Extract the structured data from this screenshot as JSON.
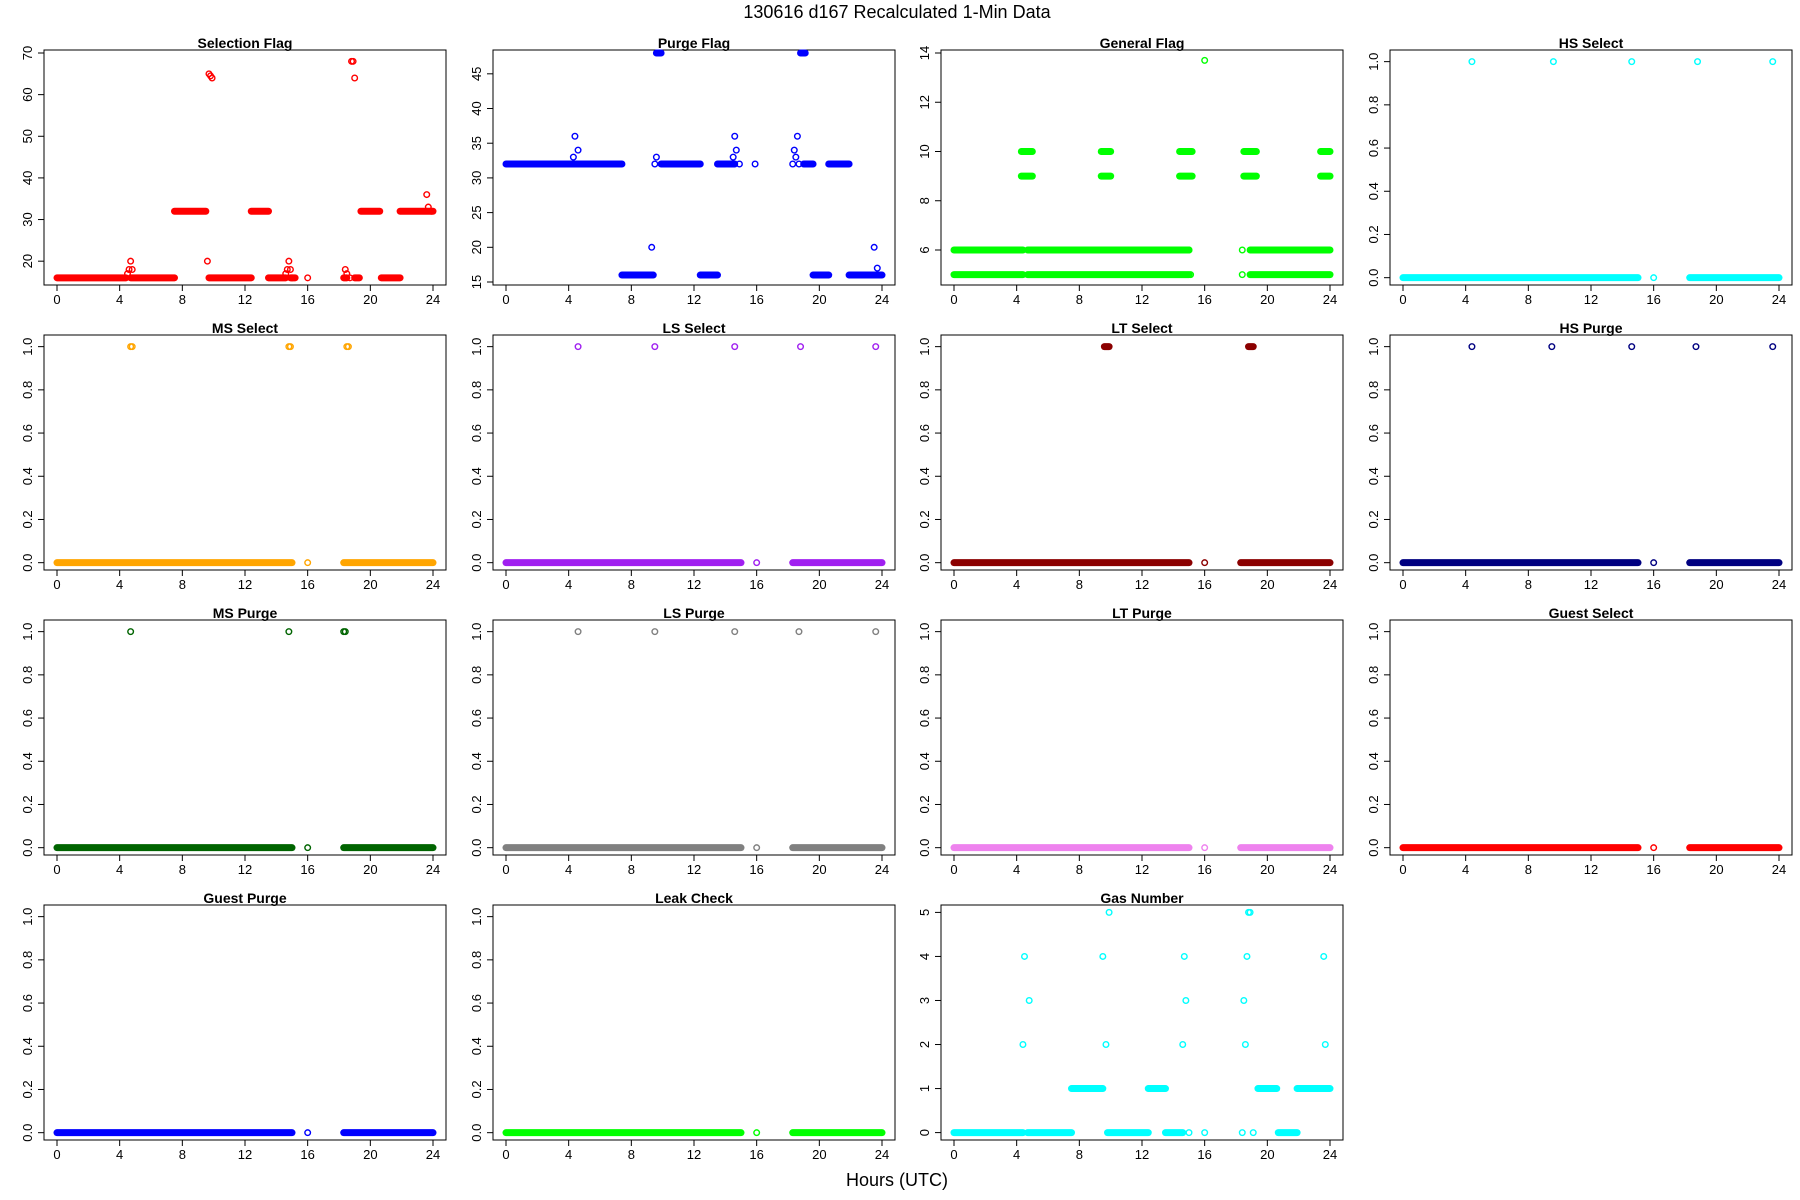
{
  "title": "130616   d167   Recalculated 1-Min Data",
  "xlabel": "Hours (UTC)",
  "chart_data": [
    {
      "type": "scatter",
      "title": "Selection Flag",
      "color": "#ff0000",
      "xlim": [
        0,
        24
      ],
      "ylim": [
        15,
        70
      ],
      "x_ticks": [
        0,
        4,
        8,
        12,
        16,
        20,
        24
      ],
      "y_ticks": [
        20,
        30,
        40,
        50,
        60,
        70
      ],
      "y_tick_labels": [
        "20",
        "30",
        "40",
        "50",
        "60",
        "70"
      ],
      "segments": [
        [
          0,
          4.4,
          16
        ],
        [
          4.7,
          7.5,
          16
        ],
        [
          7.5,
          9.5,
          32
        ],
        [
          9.7,
          12.4,
          16
        ],
        [
          12.4,
          13.5,
          32
        ],
        [
          13.5,
          14.6,
          16
        ],
        [
          14.9,
          15.2,
          16
        ],
        [
          18.3,
          18.5,
          16
        ],
        [
          19.0,
          19.3,
          16
        ],
        [
          19.4,
          20.6,
          32
        ],
        [
          20.7,
          21.9,
          16
        ],
        [
          21.9,
          24,
          32
        ]
      ],
      "points": [
        [
          4.5,
          17
        ],
        [
          4.6,
          18
        ],
        [
          4.7,
          20
        ],
        [
          4.8,
          18
        ],
        [
          9.6,
          20
        ],
        [
          9.7,
          65
        ],
        [
          9.8,
          64.5
        ],
        [
          9.9,
          64
        ],
        [
          14.6,
          17
        ],
        [
          14.7,
          18
        ],
        [
          14.8,
          20
        ],
        [
          14.9,
          18
        ],
        [
          15.0,
          16
        ],
        [
          16.0,
          16
        ],
        [
          18.4,
          18
        ],
        [
          18.5,
          17
        ],
        [
          18.7,
          16
        ],
        [
          18.8,
          68
        ],
        [
          18.9,
          68
        ],
        [
          19.0,
          64
        ],
        [
          23.6,
          36
        ],
        [
          23.7,
          33
        ],
        [
          23.9,
          32
        ]
      ]
    },
    {
      "type": "scatter",
      "title": "Purge Flag",
      "color": "#0000ff",
      "xlim": [
        0,
        24
      ],
      "ylim": [
        15,
        48
      ],
      "x_ticks": [
        0,
        4,
        8,
        12,
        16,
        20,
        24
      ],
      "y_ticks": [
        15,
        20,
        25,
        30,
        35,
        40,
        45
      ],
      "y_tick_labels": [
        "15",
        "20",
        "25",
        "30",
        "35",
        "40",
        "45"
      ],
      "segments": [
        [
          0,
          7.4,
          32
        ],
        [
          7.4,
          9.4,
          16
        ],
        [
          9.6,
          9.9,
          48
        ],
        [
          9.9,
          12.4,
          32
        ],
        [
          12.4,
          13.5,
          16
        ],
        [
          13.5,
          14.6,
          32
        ],
        [
          18.8,
          19.1,
          48
        ],
        [
          19.0,
          19.6,
          32
        ],
        [
          19.6,
          20.6,
          16
        ],
        [
          20.6,
          21.9,
          32
        ],
        [
          21.9,
          24,
          16
        ]
      ],
      "points": [
        [
          4.3,
          33
        ],
        [
          4.4,
          36
        ],
        [
          4.6,
          34
        ],
        [
          9.3,
          20
        ],
        [
          9.5,
          32
        ],
        [
          9.6,
          33
        ],
        [
          14.5,
          33
        ],
        [
          14.6,
          36
        ],
        [
          14.7,
          34
        ],
        [
          14.9,
          32
        ],
        [
          15.9,
          32
        ],
        [
          18.3,
          32
        ],
        [
          18.4,
          34
        ],
        [
          18.5,
          33
        ],
        [
          18.6,
          36
        ],
        [
          18.7,
          32
        ],
        [
          23.5,
          20
        ],
        [
          23.7,
          17
        ],
        [
          23.9,
          16
        ]
      ]
    },
    {
      "type": "scatter",
      "title": "General Flag",
      "color": "#00ff00",
      "xlim": [
        0,
        24
      ],
      "ylim": [
        4.7,
        14
      ],
      "x_ticks": [
        0,
        4,
        8,
        12,
        16,
        20,
        24
      ],
      "y_ticks": [
        6,
        8,
        10,
        12,
        14
      ],
      "y_tick_labels": [
        "6",
        "8",
        "10",
        "12",
        "14"
      ],
      "segments": [
        [
          0,
          4.4,
          6
        ],
        [
          0,
          4.4,
          5
        ],
        [
          4.3,
          5.0,
          10
        ],
        [
          4.3,
          5.0,
          9
        ],
        [
          4.7,
          15.0,
          6
        ],
        [
          4.7,
          15.0,
          5
        ],
        [
          9.4,
          10.0,
          10
        ],
        [
          9.4,
          10.0,
          9
        ],
        [
          14.4,
          15.2,
          10
        ],
        [
          14.4,
          15.2,
          9
        ],
        [
          18.5,
          19.3,
          10
        ],
        [
          18.5,
          19.3,
          9
        ],
        [
          18.9,
          24,
          6
        ],
        [
          18.9,
          24,
          5
        ],
        [
          23.4,
          24,
          10
        ],
        [
          23.4,
          24,
          9
        ]
      ],
      "points": [
        [
          15.0,
          6
        ],
        [
          15.1,
          5
        ],
        [
          16.0,
          13.7
        ],
        [
          18.4,
          6
        ],
        [
          18.4,
          5
        ]
      ]
    },
    {
      "type": "scatter",
      "title": "HS Select",
      "color": "#00ffff",
      "xlim": [
        0,
        24
      ],
      "ylim": [
        -0.02,
        1.04
      ],
      "x_ticks": [
        0,
        4,
        8,
        12,
        16,
        20,
        24
      ],
      "y_ticks": [
        0,
        0.2,
        0.4,
        0.6,
        0.8,
        1.0
      ],
      "y_tick_labels": [
        "0.0",
        "0.2",
        "0.4",
        "0.6",
        "0.8",
        "1.0"
      ],
      "segments": [
        [
          0,
          15,
          0
        ],
        [
          18.3,
          24,
          0
        ]
      ],
      "points": [
        [
          4.4,
          1
        ],
        [
          9.6,
          1
        ],
        [
          14.6,
          1
        ],
        [
          18.8,
          1
        ],
        [
          23.6,
          1
        ],
        [
          16.0,
          0
        ]
      ]
    },
    {
      "type": "scatter",
      "title": "MS Select",
      "color": "#ffa500",
      "xlim": [
        0,
        24
      ],
      "ylim": [
        -0.02,
        1.04
      ],
      "x_ticks": [
        0,
        4,
        8,
        12,
        16,
        20,
        24
      ],
      "y_ticks": [
        0,
        0.2,
        0.4,
        0.6,
        0.8,
        1.0
      ],
      "y_tick_labels": [
        "0.0",
        "0.2",
        "0.4",
        "0.6",
        "0.8",
        "1.0"
      ],
      "segments": [
        [
          0,
          15,
          0
        ],
        [
          18.3,
          24,
          0
        ]
      ],
      "points": [
        [
          4.7,
          1
        ],
        [
          4.8,
          1
        ],
        [
          14.8,
          1
        ],
        [
          14.9,
          1
        ],
        [
          18.5,
          1
        ],
        [
          18.6,
          1
        ],
        [
          16.0,
          0
        ]
      ]
    },
    {
      "type": "scatter",
      "title": "LS Select",
      "color": "#a020f0",
      "xlim": [
        0,
        24
      ],
      "ylim": [
        -0.02,
        1.04
      ],
      "x_ticks": [
        0,
        4,
        8,
        12,
        16,
        20,
        24
      ],
      "y_ticks": [
        0,
        0.2,
        0.4,
        0.6,
        0.8,
        1.0
      ],
      "y_tick_labels": [
        "0.0",
        "0.2",
        "0.4",
        "0.6",
        "0.8",
        "1.0"
      ],
      "segments": [
        [
          0,
          15,
          0
        ],
        [
          18.3,
          24,
          0
        ]
      ],
      "points": [
        [
          4.6,
          1
        ],
        [
          9.5,
          1
        ],
        [
          14.6,
          1
        ],
        [
          18.8,
          1
        ],
        [
          23.6,
          1
        ],
        [
          16.0,
          0
        ]
      ]
    },
    {
      "type": "scatter",
      "title": "LT Select",
      "color": "#8b0000",
      "xlim": [
        0,
        24
      ],
      "ylim": [
        -0.02,
        1.04
      ],
      "x_ticks": [
        0,
        4,
        8,
        12,
        16,
        20,
        24
      ],
      "y_ticks": [
        0,
        0.2,
        0.4,
        0.6,
        0.8,
        1.0
      ],
      "y_tick_labels": [
        "0.0",
        "0.2",
        "0.4",
        "0.6",
        "0.8",
        "1.0"
      ],
      "segments": [
        [
          0,
          15,
          0
        ],
        [
          18.3,
          24,
          0
        ],
        [
          9.6,
          9.9,
          1
        ],
        [
          18.8,
          19.1,
          1
        ]
      ],
      "points": [
        [
          16.0,
          0
        ]
      ]
    },
    {
      "type": "scatter",
      "title": "HS Purge",
      "color": "#000080",
      "xlim": [
        0,
        24
      ],
      "ylim": [
        -0.02,
        1.04
      ],
      "x_ticks": [
        0,
        4,
        8,
        12,
        16,
        20,
        24
      ],
      "y_ticks": [
        0,
        0.2,
        0.4,
        0.6,
        0.8,
        1.0
      ],
      "y_tick_labels": [
        "0.0",
        "0.2",
        "0.4",
        "0.6",
        "0.8",
        "1.0"
      ],
      "segments": [
        [
          0,
          15,
          0
        ],
        [
          18.3,
          24,
          0
        ]
      ],
      "points": [
        [
          4.4,
          1
        ],
        [
          9.5,
          1
        ],
        [
          14.6,
          1
        ],
        [
          18.7,
          1
        ],
        [
          23.6,
          1
        ],
        [
          16.0,
          0
        ]
      ]
    },
    {
      "type": "scatter",
      "title": "MS Purge",
      "color": "#006400",
      "xlim": [
        0,
        24
      ],
      "ylim": [
        -0.02,
        1.04
      ],
      "x_ticks": [
        0,
        4,
        8,
        12,
        16,
        20,
        24
      ],
      "y_ticks": [
        0,
        0.2,
        0.4,
        0.6,
        0.8,
        1.0
      ],
      "y_tick_labels": [
        "0.0",
        "0.2",
        "0.4",
        "0.6",
        "0.8",
        "1.0"
      ],
      "segments": [
        [
          0,
          15,
          0
        ],
        [
          18.3,
          24,
          0
        ]
      ],
      "points": [
        [
          4.7,
          1
        ],
        [
          14.8,
          1
        ],
        [
          18.3,
          1
        ],
        [
          18.4,
          1
        ],
        [
          16.0,
          0
        ]
      ]
    },
    {
      "type": "scatter",
      "title": "LS Purge",
      "color": "#808080",
      "xlim": [
        0,
        24
      ],
      "ylim": [
        -0.02,
        1.04
      ],
      "x_ticks": [
        0,
        4,
        8,
        12,
        16,
        20,
        24
      ],
      "y_ticks": [
        0,
        0.2,
        0.4,
        0.6,
        0.8,
        1.0
      ],
      "y_tick_labels": [
        "0.0",
        "0.2",
        "0.4",
        "0.6",
        "0.8",
        "1.0"
      ],
      "segments": [
        [
          0,
          15,
          0
        ],
        [
          18.3,
          24,
          0
        ]
      ],
      "points": [
        [
          4.6,
          1
        ],
        [
          9.5,
          1
        ],
        [
          14.6,
          1
        ],
        [
          18.7,
          1
        ],
        [
          23.6,
          1
        ],
        [
          16.0,
          0
        ]
      ]
    },
    {
      "type": "scatter",
      "title": "LT Purge",
      "color": "#ee82ee",
      "xlim": [
        0,
        24
      ],
      "ylim": [
        -0.02,
        1.04
      ],
      "x_ticks": [
        0,
        4,
        8,
        12,
        16,
        20,
        24
      ],
      "y_ticks": [
        0,
        0.2,
        0.4,
        0.6,
        0.8,
        1.0
      ],
      "y_tick_labels": [
        "0.0",
        "0.2",
        "0.4",
        "0.6",
        "0.8",
        "1.0"
      ],
      "segments": [
        [
          0,
          15,
          0
        ],
        [
          18.3,
          24,
          0
        ]
      ],
      "points": [
        [
          16.0,
          0
        ]
      ]
    },
    {
      "type": "scatter",
      "title": "Guest Select",
      "color": "#ff0000",
      "xlim": [
        0,
        24
      ],
      "ylim": [
        -0.02,
        1.04
      ],
      "x_ticks": [
        0,
        4,
        8,
        12,
        16,
        20,
        24
      ],
      "y_ticks": [
        0,
        0.2,
        0.4,
        0.6,
        0.8,
        1.0
      ],
      "y_tick_labels": [
        "0.0",
        "0.2",
        "0.4",
        "0.6",
        "0.8",
        "1.0"
      ],
      "segments": [
        [
          0,
          15,
          0
        ],
        [
          18.3,
          24,
          0
        ]
      ],
      "points": [
        [
          16.0,
          0
        ]
      ]
    },
    {
      "type": "scatter",
      "title": "Guest Purge",
      "color": "#0000ff",
      "xlim": [
        0,
        24
      ],
      "ylim": [
        -0.02,
        1.04
      ],
      "x_ticks": [
        0,
        4,
        8,
        12,
        16,
        20,
        24
      ],
      "y_ticks": [
        0,
        0.2,
        0.4,
        0.6,
        0.8,
        1.0
      ],
      "y_tick_labels": [
        "0.0",
        "0.2",
        "0.4",
        "0.6",
        "0.8",
        "1.0"
      ],
      "segments": [
        [
          0,
          15,
          0
        ],
        [
          18.3,
          24,
          0
        ]
      ],
      "points": [
        [
          16.0,
          0
        ]
      ]
    },
    {
      "type": "scatter",
      "title": "Leak Check",
      "color": "#00ff00",
      "xlim": [
        0,
        24
      ],
      "ylim": [
        -0.02,
        1.04
      ],
      "x_ticks": [
        0,
        4,
        8,
        12,
        16,
        20,
        24
      ],
      "y_ticks": [
        0,
        0.2,
        0.4,
        0.6,
        0.8,
        1.0
      ],
      "y_tick_labels": [
        "0.0",
        "0.2",
        "0.4",
        "0.6",
        "0.8",
        "1.0"
      ],
      "segments": [
        [
          0,
          15,
          0
        ],
        [
          18.3,
          24,
          0
        ]
      ],
      "points": [
        [
          16.0,
          0
        ]
      ]
    },
    {
      "type": "scatter",
      "title": "Gas Number",
      "color": "#00ffff",
      "xlim": [
        0,
        24
      ],
      "ylim": [
        -0.1,
        5.1
      ],
      "x_ticks": [
        0,
        4,
        8,
        12,
        16,
        20,
        24
      ],
      "y_ticks": [
        0,
        1,
        2,
        3,
        4,
        5
      ],
      "y_tick_labels": [
        "0",
        "1",
        "2",
        "3",
        "4",
        "5"
      ],
      "segments": [
        [
          0,
          4.4,
          0
        ],
        [
          4.7,
          7.5,
          0
        ],
        [
          7.5,
          9.5,
          1
        ],
        [
          9.8,
          12.4,
          0
        ],
        [
          12.4,
          13.5,
          1
        ],
        [
          13.5,
          14.6,
          0
        ],
        [
          19.4,
          20.6,
          1
        ],
        [
          20.7,
          21.9,
          0
        ],
        [
          21.9,
          24,
          1
        ]
      ],
      "points": [
        [
          4.4,
          2
        ],
        [
          4.5,
          4
        ],
        [
          4.8,
          3
        ],
        [
          9.5,
          4
        ],
        [
          9.7,
          2
        ],
        [
          9.9,
          5
        ],
        [
          14.6,
          2
        ],
        [
          14.7,
          4
        ],
        [
          14.8,
          3
        ],
        [
          15.0,
          0
        ],
        [
          16.0,
          0
        ],
        [
          18.4,
          0
        ],
        [
          18.5,
          3
        ],
        [
          18.6,
          2
        ],
        [
          18.7,
          4
        ],
        [
          18.8,
          5
        ],
        [
          18.9,
          5
        ],
        [
          19.1,
          0
        ],
        [
          23.6,
          4
        ],
        [
          23.7,
          2
        ],
        [
          23.9,
          1
        ]
      ]
    }
  ]
}
